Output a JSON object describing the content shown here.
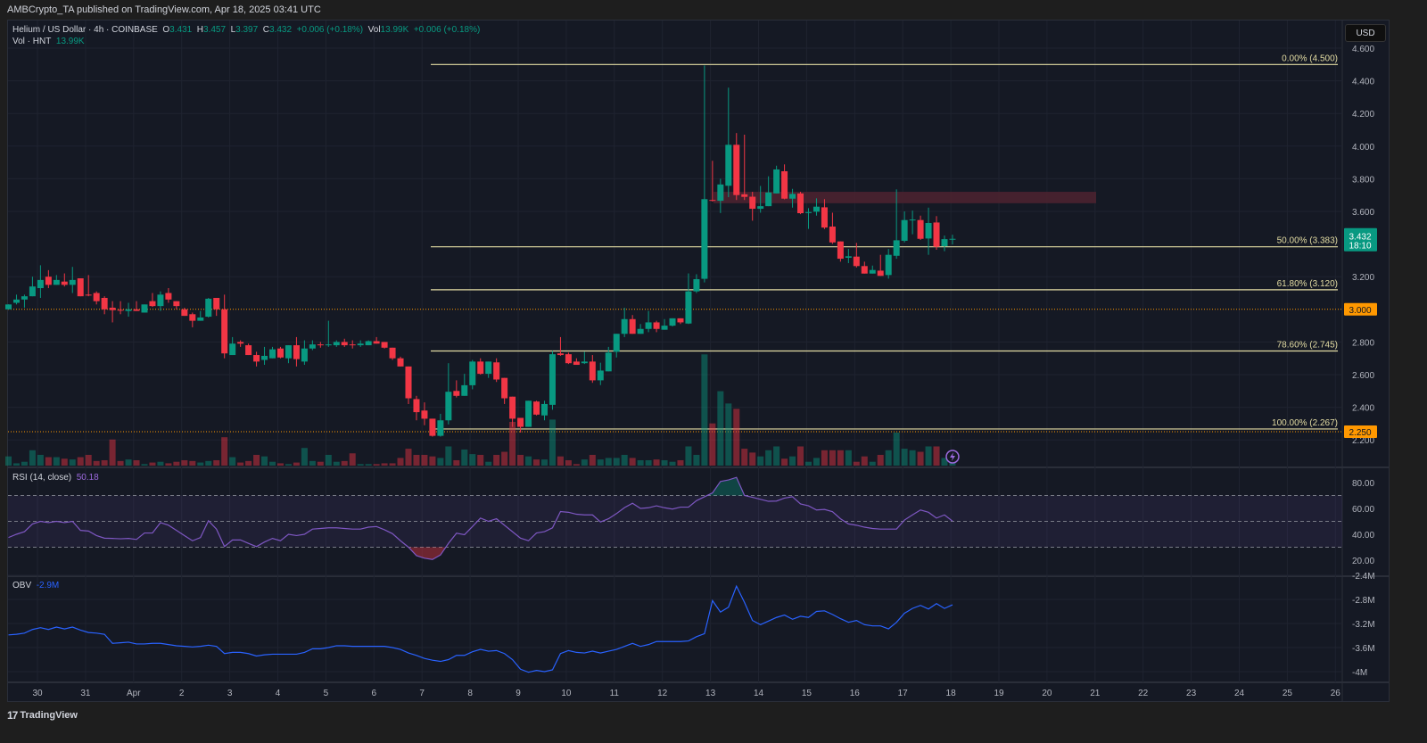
{
  "header": {
    "publish_line": "AMBCrypto_TA published on TradingView.com, Apr 18, 2025 03:41 UTC"
  },
  "legend": {
    "symbol": "Helium / US Dollar · 4h · COINBASE",
    "o_label": "O",
    "o": "3.431",
    "h_label": "H",
    "h": "3.457",
    "l_label": "L",
    "l": "3.397",
    "c_label": "C",
    "c": "3.432",
    "change": "+0.006 (+0.18%)",
    "vol_label": "Vol",
    "vol": "13.99K",
    "vol_change": "+0.006 (+0.18%)",
    "vol_series_label": "Vol · HNT",
    "vol_series_value": "13.99K"
  },
  "currency_button": "USD",
  "footer": {
    "brand": "TradingView"
  },
  "colors": {
    "up": "#089981",
    "down": "#f23645",
    "fib": "#e3dca3",
    "level": "#ff9800",
    "rsi": "#7e57c2",
    "obv": "#2962ff",
    "zone": "#4a2230"
  },
  "chart_data": {
    "type": "candlestick",
    "interval": "4h",
    "price_axis": {
      "ticks": [
        "4.600",
        "4.400",
        "4.200",
        "4.000",
        "3.800",
        "3.600",
        "3.200",
        "2.800",
        "2.600",
        "2.400",
        "2.200"
      ],
      "ylim": [
        2.2,
        4.6
      ]
    },
    "time_axis": {
      "ticks": [
        "30",
        "31",
        "Apr",
        "2",
        "3",
        "4",
        "5",
        "6",
        "7",
        "8",
        "9",
        "10",
        "11",
        "12",
        "13",
        "14",
        "15",
        "16",
        "17",
        "18",
        "19",
        "20",
        "21",
        "22",
        "23",
        "24",
        "25",
        "26"
      ]
    },
    "current_price": {
      "value": "3.432",
      "countdown": "18:10"
    },
    "horizontal_levels": [
      {
        "price": 3.0,
        "label": "3.000"
      },
      {
        "price": 2.25,
        "label": "2.250"
      }
    ],
    "fib_levels": [
      {
        "price": 4.5,
        "label": "0.00% (4.500)"
      },
      {
        "price": 3.383,
        "label": "50.00% (3.383)"
      },
      {
        "price": 3.12,
        "label": "61.80% (3.120)"
      },
      {
        "price": 2.745,
        "label": "78.60% (2.745)"
      },
      {
        "price": 2.267,
        "label": "100.00% (2.267)"
      }
    ],
    "resistance_zone": {
      "top": 3.72,
      "bottom": 3.65
    },
    "ohlc": [
      [
        3.0,
        3.03,
        3.0,
        3.03
      ],
      [
        3.04,
        3.09,
        3.03,
        3.06
      ],
      [
        3.06,
        3.09,
        3.01,
        3.08
      ],
      [
        3.08,
        3.2,
        3.08,
        3.14
      ],
      [
        3.13,
        3.27,
        3.07,
        3.18
      ],
      [
        3.2,
        3.24,
        3.13,
        3.15
      ],
      [
        3.15,
        3.21,
        3.15,
        3.18
      ],
      [
        3.17,
        3.22,
        3.14,
        3.15
      ],
      [
        3.15,
        3.26,
        3.1,
        3.18
      ],
      [
        3.19,
        3.19,
        3.08,
        3.08
      ],
      [
        3.09,
        3.21,
        3.08,
        3.085
      ],
      [
        3.1,
        3.11,
        3.03,
        3.05
      ],
      [
        3.07,
        3.08,
        2.97,
        3.0
      ],
      [
        3.01,
        3.05,
        2.92,
        2.995
      ],
      [
        2.997,
        3.05,
        2.97,
        2.995
      ],
      [
        2.99,
        3.04,
        2.955,
        3.0
      ],
      [
        3.0,
        3.05,
        2.99,
        2.99
      ],
      [
        2.98,
        3.03,
        2.98,
        3.03
      ],
      [
        3.05,
        3.1,
        3.015,
        3.02
      ],
      [
        3.02,
        3.11,
        2.99,
        3.09
      ],
      [
        3.1,
        3.13,
        3.04,
        3.06
      ],
      [
        3.05,
        3.05,
        3.0,
        3.02
      ],
      [
        3.0,
        3.01,
        2.96,
        2.96
      ],
      [
        2.97,
        2.98,
        2.89,
        2.93
      ],
      [
        2.93,
        2.99,
        2.93,
        2.95
      ],
      [
        2.955,
        3.07,
        2.95,
        3.065
      ],
      [
        3.07,
        3.07,
        2.96,
        3.0
      ],
      [
        3.0,
        3.09,
        2.7,
        2.73
      ],
      [
        2.72,
        2.83,
        2.72,
        2.79
      ],
      [
        2.8,
        2.81,
        2.77,
        2.79
      ],
      [
        2.78,
        2.79,
        2.72,
        2.72
      ],
      [
        2.72,
        2.74,
        2.65,
        2.68
      ],
      [
        2.69,
        2.77,
        2.66,
        2.715
      ],
      [
        2.7,
        2.77,
        2.7,
        2.755
      ],
      [
        2.76,
        2.77,
        2.7,
        2.705
      ],
      [
        2.7,
        2.78,
        2.67,
        2.78
      ],
      [
        2.78,
        2.83,
        2.65,
        2.695
      ],
      [
        2.68,
        2.81,
        2.66,
        2.76
      ],
      [
        2.76,
        2.81,
        2.75,
        2.785
      ],
      [
        2.785,
        2.8,
        2.765,
        2.78
      ],
      [
        2.78,
        2.93,
        2.77,
        2.785
      ],
      [
        2.78,
        2.81,
        2.77,
        2.8
      ],
      [
        2.8,
        2.82,
        2.77,
        2.78
      ],
      [
        2.785,
        2.81,
        2.76,
        2.783
      ],
      [
        2.78,
        2.81,
        2.77,
        2.79
      ],
      [
        2.78,
        2.81,
        2.78,
        2.805
      ],
      [
        2.805,
        2.83,
        2.79,
        2.79
      ],
      [
        2.8,
        2.8,
        2.76,
        2.765
      ],
      [
        2.765,
        2.765,
        2.69,
        2.7
      ],
      [
        2.7,
        2.71,
        2.65,
        2.65
      ],
      [
        2.65,
        2.65,
        2.42,
        2.455
      ],
      [
        2.45,
        2.47,
        2.32,
        2.37
      ],
      [
        2.38,
        2.43,
        2.29,
        2.33
      ],
      [
        2.33,
        2.33,
        2.22,
        2.225
      ],
      [
        2.225,
        2.36,
        2.22,
        2.32
      ],
      [
        2.32,
        2.67,
        2.295,
        2.495
      ],
      [
        2.5,
        2.565,
        2.46,
        2.47
      ],
      [
        2.47,
        2.605,
        2.47,
        2.535
      ],
      [
        2.535,
        2.69,
        2.51,
        2.68
      ],
      [
        2.68,
        2.7,
        2.6,
        2.605
      ],
      [
        2.605,
        2.68,
        2.58,
        2.68
      ],
      [
        2.675,
        2.7,
        2.555,
        2.57
      ],
      [
        2.58,
        2.58,
        2.42,
        2.455
      ],
      [
        2.465,
        2.465,
        2.28,
        2.33
      ],
      [
        2.335,
        2.335,
        2.245,
        2.28
      ],
      [
        2.28,
        2.44,
        2.28,
        2.44
      ],
      [
        2.435,
        2.44,
        2.35,
        2.355
      ],
      [
        2.35,
        2.44,
        2.32,
        2.42
      ],
      [
        2.415,
        2.745,
        2.385,
        2.725
      ],
      [
        2.73,
        2.83,
        2.715,
        2.72
      ],
      [
        2.725,
        2.735,
        2.665,
        2.67
      ],
      [
        2.68,
        2.7,
        2.66,
        2.66
      ],
      [
        2.67,
        2.74,
        2.665,
        2.68
      ],
      [
        2.68,
        2.72,
        2.55,
        2.565
      ],
      [
        2.565,
        2.673,
        2.536,
        2.625
      ],
      [
        2.62,
        2.77,
        2.62,
        2.735
      ],
      [
        2.74,
        2.85,
        2.705,
        2.85
      ],
      [
        2.85,
        3.01,
        2.83,
        2.94
      ],
      [
        2.94,
        2.965,
        2.85,
        2.85
      ],
      [
        2.85,
        2.91,
        2.85,
        2.88
      ],
      [
        2.88,
        2.99,
        2.86,
        2.92
      ],
      [
        2.92,
        2.93,
        2.86,
        2.88
      ],
      [
        2.875,
        2.94,
        2.875,
        2.9
      ],
      [
        2.9,
        2.945,
        2.895,
        2.945
      ],
      [
        2.945,
        2.945,
        2.91,
        2.92
      ],
      [
        2.913,
        3.22,
        2.91,
        3.11
      ],
      [
        3.11,
        3.215,
        3.1,
        3.185
      ],
      [
        3.187,
        4.494,
        3.165,
        3.675
      ],
      [
        3.67,
        3.91,
        3.66,
        3.665
      ],
      [
        3.665,
        3.8,
        3.59,
        3.765
      ],
      [
        3.757,
        4.358,
        3.687,
        4.008
      ],
      [
        4.008,
        4.08,
        3.67,
        3.7
      ],
      [
        3.705,
        4.07,
        3.67,
        3.689
      ],
      [
        3.69,
        3.72,
        3.543,
        3.616
      ],
      [
        3.616,
        3.756,
        3.592,
        3.632
      ],
      [
        3.632,
        3.815,
        3.632,
        3.716
      ],
      [
        3.71,
        3.88,
        3.71,
        3.857
      ],
      [
        3.846,
        3.888,
        3.674,
        3.678
      ],
      [
        3.678,
        3.738,
        3.623,
        3.707
      ],
      [
        3.71,
        3.72,
        3.583,
        3.589
      ],
      [
        3.59,
        3.62,
        3.493,
        3.596
      ],
      [
        3.598,
        3.68,
        3.574,
        3.629
      ],
      [
        3.625,
        3.675,
        3.492,
        3.501
      ],
      [
        3.507,
        3.592,
        3.401,
        3.41
      ],
      [
        3.416,
        3.416,
        3.292,
        3.31
      ],
      [
        3.316,
        3.37,
        3.283,
        3.325
      ],
      [
        3.323,
        3.407,
        3.256,
        3.265
      ],
      [
        3.265,
        3.292,
        3.219,
        3.219
      ],
      [
        3.219,
        3.268,
        3.219,
        3.241
      ],
      [
        3.237,
        3.334,
        3.205,
        3.205
      ],
      [
        3.21,
        3.37,
        3.188,
        3.334
      ],
      [
        3.328,
        3.735,
        3.31,
        3.423
      ],
      [
        3.42,
        3.6,
        3.41,
        3.547
      ],
      [
        3.547,
        3.605,
        3.46,
        3.55
      ],
      [
        3.547,
        3.574,
        3.425,
        3.432
      ],
      [
        3.434,
        3.623,
        3.334,
        3.529
      ],
      [
        3.532,
        3.571,
        3.365,
        3.383
      ],
      [
        3.387,
        3.452,
        3.356,
        3.43
      ],
      [
        3.431,
        3.457,
        3.397,
        3.432
      ]
    ],
    "volume_k": [
      12,
      3,
      5,
      20,
      14,
      11,
      11,
      9,
      8,
      11,
      14,
      6,
      7,
      34,
      6,
      8,
      7,
      2,
      4,
      5,
      3,
      5,
      7,
      6,
      4,
      6,
      7,
      37,
      11,
      4,
      6,
      14,
      12,
      5,
      3,
      2,
      4,
      23,
      6,
      5,
      14,
      5,
      6,
      16,
      2,
      2,
      2,
      3,
      3,
      10,
      22,
      14,
      14,
      12,
      10,
      25,
      7,
      21,
      15,
      14,
      5,
      14,
      18,
      57,
      14,
      12,
      8,
      8,
      60,
      12,
      7,
      2,
      8,
      14,
      8,
      10,
      10,
      14,
      10,
      7,
      7,
      8,
      7,
      5,
      7,
      25,
      14,
      145,
      55,
      97,
      81,
      74,
      22,
      17,
      12,
      20,
      25,
      9,
      12,
      25,
      5,
      10,
      20,
      20,
      20,
      20,
      5,
      12,
      5,
      14,
      20,
      43,
      22,
      20,
      18,
      25,
      25,
      10,
      14
    ],
    "rsi": {
      "label": "RSI (14, close)",
      "value": "50.18",
      "ticks": [
        "80.00",
        "60.00",
        "40.00",
        "20.00"
      ],
      "bands": [
        70,
        50,
        30
      ],
      "values": [
        37.5,
        40,
        42,
        48,
        50,
        49,
        50,
        49,
        50,
        43,
        42.5,
        39,
        37,
        36.8,
        36.5,
        36.8,
        36,
        41,
        41,
        49,
        47,
        43,
        39,
        35,
        37.5,
        50.5,
        44,
        30.5,
        35.6,
        35.6,
        33,
        30.5,
        34,
        36.8,
        35,
        40,
        39,
        40,
        44,
        44.5,
        45,
        45,
        44.5,
        44,
        44,
        45.5,
        46,
        43.5,
        40.5,
        35,
        30,
        23.5,
        21.5,
        20.5,
        24,
        33,
        40.8,
        39.7,
        46,
        52.5,
        50,
        52,
        47,
        42,
        37,
        35,
        41,
        42,
        45,
        57.6,
        57,
        55.5,
        55,
        55,
        49.5,
        52,
        56,
        60.6,
        64,
        60,
        60.5,
        62,
        60.5,
        59.5,
        61,
        61,
        66,
        69,
        72,
        80.8,
        82,
        84,
        70,
        68.6,
        67,
        65.5,
        65.7,
        68,
        69,
        63.5,
        62,
        58.8,
        59.2,
        57.5,
        52,
        48,
        47,
        45.5,
        44.5,
        44,
        44,
        44,
        51,
        55,
        58.8,
        57,
        52.5,
        55,
        50.18
      ]
    },
    "obv": {
      "label": "OBV",
      "value": "-2.9M",
      "ticks": [
        "-2.4M",
        "-2.8M",
        "-3.2M",
        "-3.6M",
        "-4M"
      ],
      "values_m": [
        -3.39,
        -3.38,
        -3.36,
        -3.3,
        -3.27,
        -3.3,
        -3.26,
        -3.29,
        -3.26,
        -3.31,
        -3.35,
        -3.36,
        -3.38,
        -3.53,
        -3.52,
        -3.51,
        -3.54,
        -3.54,
        -3.53,
        -3.53,
        -3.55,
        -3.57,
        -3.58,
        -3.59,
        -3.58,
        -3.56,
        -3.58,
        -3.7,
        -3.68,
        -3.68,
        -3.7,
        -3.74,
        -3.72,
        -3.71,
        -3.71,
        -3.71,
        -3.71,
        -3.68,
        -3.62,
        -3.62,
        -3.6,
        -3.57,
        -3.57,
        -3.58,
        -3.58,
        -3.58,
        -3.58,
        -3.58,
        -3.6,
        -3.63,
        -3.69,
        -3.73,
        -3.78,
        -3.81,
        -3.83,
        -3.8,
        -3.73,
        -3.73,
        -3.67,
        -3.63,
        -3.66,
        -3.65,
        -3.7,
        -3.8,
        -3.96,
        -4.01,
        -3.98,
        -4.0,
        -3.97,
        -3.7,
        -3.65,
        -3.68,
        -3.69,
        -3.66,
        -3.69,
        -3.66,
        -3.63,
        -3.58,
        -3.53,
        -3.58,
        -3.55,
        -3.5,
        -3.5,
        -3.5,
        -3.5,
        -3.49,
        -3.42,
        -3.37,
        -2.82,
        -3.01,
        -2.93,
        -2.58,
        -2.85,
        -3.15,
        -3.22,
        -3.16,
        -3.1,
        -3.06,
        -3.13,
        -3.08,
        -3.1,
        -3.0,
        -2.99,
        -3.05,
        -3.12,
        -3.18,
        -3.15,
        -3.22,
        -3.24,
        -3.24,
        -3.29,
        -3.18,
        -3.03,
        -2.95,
        -2.9,
        -2.96,
        -2.87,
        -2.95,
        -2.89
      ]
    }
  }
}
